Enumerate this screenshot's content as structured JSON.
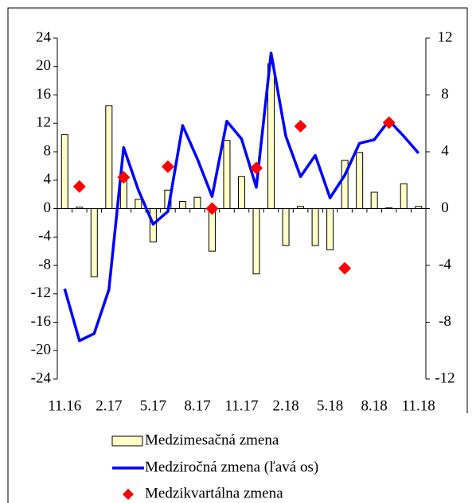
{
  "chart_data": {
    "type": "combo",
    "categories": [
      "11.16",
      null,
      null,
      "2.17",
      null,
      null,
      "5.17",
      null,
      null,
      "8.17",
      null,
      null,
      "11.17",
      null,
      null,
      "2.18",
      null,
      null,
      "5.18",
      null,
      null,
      "8.18",
      null,
      null,
      "11.18"
    ],
    "ylim": [
      -24,
      24
    ],
    "yticks": [
      -24,
      -20,
      -16,
      -12,
      -8,
      -4,
      0,
      4,
      8,
      12,
      16,
      20,
      24
    ],
    "y2lim": [
      -12,
      12
    ],
    "y2ticks": [
      -12,
      -8,
      -4,
      0,
      4,
      8,
      12
    ],
    "legend": "bottom",
    "series": [
      {
        "name": "Medzimesačná zmena",
        "type": "bar",
        "axis": "y2",
        "color": "#ffffc8",
        "values": [
          5.2,
          0.1,
          -4.8,
          7.25,
          2.05,
          0.65,
          -2.35,
          1.3,
          0.5,
          0.8,
          -3.0,
          4.8,
          2.25,
          -4.6,
          10.2,
          -2.6,
          0.15,
          -2.6,
          -2.9,
          3.4,
          3.95,
          1.15,
          0.05,
          1.75,
          0.15
        ]
      },
      {
        "name": "Medziročná zmena (ľavá os)",
        "type": "line",
        "axis": "y",
        "color": "#0000ff",
        "values": [
          -11.3,
          -18.6,
          -17.6,
          -11.4,
          8.6,
          2.6,
          -2.2,
          -0.4,
          11.7,
          7.0,
          1.7,
          12.3,
          9.8,
          3.0,
          21.9,
          10.2,
          4.5,
          7.5,
          1.5,
          4.7,
          9.2,
          9.7,
          12.4,
          10.2,
          7.8
        ]
      },
      {
        "name": "Medzikvartálna zmena",
        "type": "scatter",
        "axis": "y2",
        "color": "#ff0000",
        "values": [
          null,
          1.55,
          null,
          null,
          2.2,
          null,
          null,
          2.95,
          null,
          null,
          0,
          null,
          null,
          2.85,
          null,
          null,
          5.8,
          null,
          null,
          -4.2,
          null,
          null,
          6.05,
          null,
          null
        ]
      }
    ]
  }
}
